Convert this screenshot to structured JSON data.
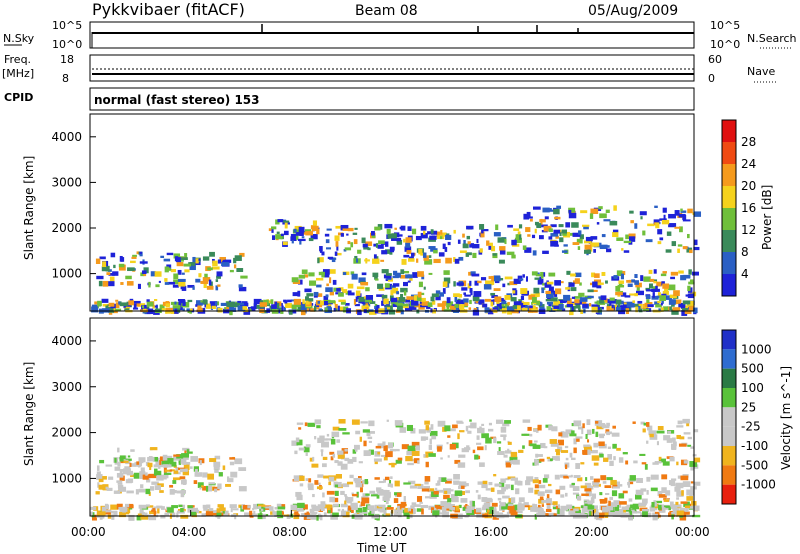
{
  "header": {
    "title": "Pykkvibaer (fitACF)",
    "beam": "Beam 08",
    "date": "05/Aug/2009"
  },
  "summary_panels": {
    "nsky_label": "N.Sky",
    "nsky_ticks": [
      "10^5",
      "10^0"
    ],
    "nsearch_label": "N.Search",
    "nsearch_ticks": [
      "10^5",
      "10^0"
    ],
    "freq_label": "Freq.",
    "freq_unit": "[MHz]",
    "freq_ticks": [
      "18",
      "8"
    ],
    "nave_label": "Nave",
    "nave_ticks": [
      "60",
      "0"
    ],
    "cpid_label": "CPID",
    "cpid_value": "normal (fast stereo) 153"
  },
  "chart_data": [
    {
      "type": "heatmap",
      "name": "power",
      "ylabel": "Slant Range [km]",
      "ylim": [
        180,
        4500
      ],
      "yticks": [
        "1000",
        "2000",
        "3000",
        "4000"
      ],
      "colorbar_label": "Power [dB]",
      "colorbar_ticks": [
        "4",
        "8",
        "12",
        "16",
        "20",
        "24",
        "28"
      ],
      "colorbar_colors": [
        "#1e22d8",
        "#2a5fc4",
        "#3a8a5a",
        "#6fbf3a",
        "#f5d21c",
        "#f59a1c",
        "#f04a12",
        "#e01010"
      ],
      "echo_bands": [
        {
          "t_start": 0.0,
          "t_end": 24.0,
          "r_low": 200,
          "r_high": 450
        },
        {
          "t_start": 0.2,
          "t_end": 6.0,
          "r_low": 700,
          "r_high": 1500
        },
        {
          "t_start": 7.0,
          "t_end": 9.0,
          "r_low": 1700,
          "r_high": 2200
        },
        {
          "t_start": 9.0,
          "t_end": 17.0,
          "r_low": 1300,
          "r_high": 2100
        },
        {
          "t_start": 17.0,
          "t_end": 24.0,
          "r_low": 1500,
          "r_high": 2500
        },
        {
          "t_start": 8.0,
          "t_end": 24.0,
          "r_low": 400,
          "r_high": 1100
        }
      ]
    },
    {
      "type": "heatmap",
      "name": "velocity",
      "ylabel": "Slant Range [km]",
      "ylim": [
        180,
        4500
      ],
      "yticks": [
        "1000",
        "2000",
        "3000",
        "4000"
      ],
      "colorbar_label": "Velocity [m s^-1]",
      "colorbar_ticks": [
        "1000",
        "500",
        "100",
        "25",
        "-25",
        "-100",
        "-500",
        "-1000"
      ],
      "colorbar_colors": [
        "#2030c8",
        "#2e6cd0",
        "#2a7a45",
        "#59c23a",
        "#c8c8c8",
        "#c8c8c8",
        "#f0b41e",
        "#f07a12",
        "#e8200e"
      ],
      "echo_bands": [
        {
          "t_start": 0.0,
          "t_end": 24.0,
          "r_low": 200,
          "r_high": 450
        },
        {
          "t_start": 0.2,
          "t_end": 6.0,
          "r_low": 700,
          "r_high": 1500
        },
        {
          "t_start": 1.0,
          "t_end": 4.0,
          "r_low": 1100,
          "r_high": 1700
        },
        {
          "t_start": 8.0,
          "t_end": 24.0,
          "r_low": 1300,
          "r_high": 2300
        },
        {
          "t_start": 8.0,
          "t_end": 24.0,
          "r_low": 400,
          "r_high": 1100
        }
      ]
    }
  ],
  "xaxis": {
    "label": "Time UT",
    "ticks": [
      "00:00",
      "04:00",
      "08:00",
      "12:00",
      "16:00",
      "20:00",
      "00:00"
    ],
    "range_hours": [
      0,
      24
    ]
  }
}
